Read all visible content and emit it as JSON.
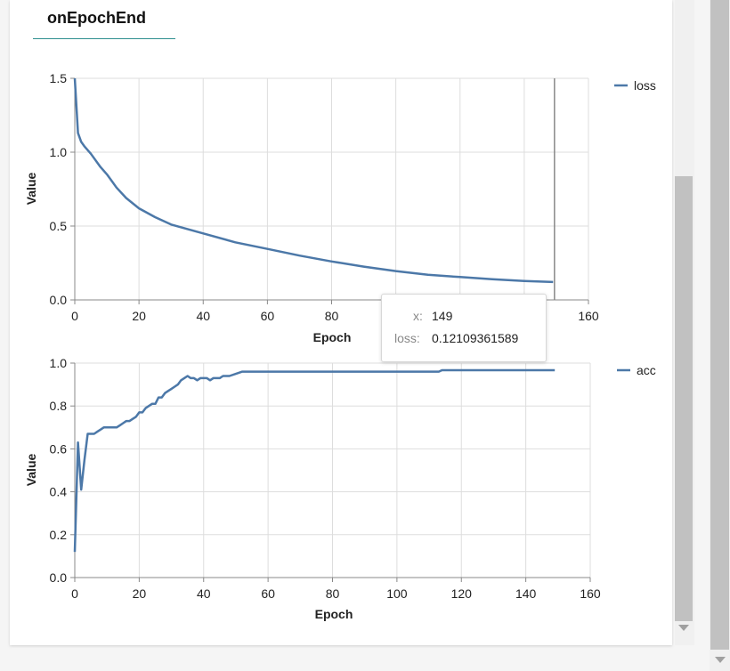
{
  "tab": {
    "label": "onEpochEnd"
  },
  "colors": {
    "series": "#4c78a8",
    "grid": "#dddddd",
    "axis": "#888888",
    "rule": "#888888"
  },
  "tooltip": {
    "x_key": "x:",
    "x_val": "149",
    "loss_key": "loss:",
    "loss_val": "0.12109361589"
  },
  "chart_data": [
    {
      "type": "line",
      "xlabel": "Epoch",
      "ylabel": "Value",
      "xlim": [
        0,
        160
      ],
      "ylim": [
        0,
        1.5
      ],
      "x_ticks": [
        0,
        20,
        40,
        60,
        80,
        100,
        120,
        140,
        160
      ],
      "y_ticks": [
        "0.0",
        "0.5",
        "1.0",
        "1.5"
      ],
      "legend": "top-right",
      "series": [
        {
          "name": "loss",
          "x": [
            0,
            1,
            2,
            3,
            5,
            8,
            10,
            13,
            16,
            20,
            25,
            30,
            35,
            40,
            50,
            60,
            70,
            80,
            90,
            100,
            110,
            120,
            130,
            140,
            149
          ],
          "y": [
            1.5,
            1.13,
            1.07,
            1.04,
            0.99,
            0.9,
            0.85,
            0.76,
            0.69,
            0.62,
            0.56,
            0.51,
            0.48,
            0.45,
            0.39,
            0.345,
            0.3,
            0.26,
            0.225,
            0.195,
            0.17,
            0.155,
            0.14,
            0.128,
            0.121
          ]
        }
      ],
      "hover_x": 149
    },
    {
      "type": "line",
      "xlabel": "Epoch",
      "ylabel": "Value",
      "xlim": [
        0,
        160
      ],
      "ylim": [
        0,
        1.0
      ],
      "x_ticks": [
        0,
        20,
        40,
        60,
        80,
        100,
        120,
        140,
        160
      ],
      "y_ticks": [
        "0.0",
        "0.2",
        "0.4",
        "0.6",
        "0.8",
        "1.0"
      ],
      "legend": "top-right",
      "series": [
        {
          "name": "acc",
          "x": [
            0,
            1,
            2,
            3,
            4,
            5,
            6,
            7,
            8,
            9,
            10,
            11,
            12,
            13,
            14,
            15,
            16,
            17,
            18,
            19,
            20,
            21,
            22,
            23,
            24,
            25,
            26,
            27,
            28,
            29,
            30,
            31,
            32,
            33,
            34,
            35,
            36,
            37,
            38,
            39,
            40,
            41,
            42,
            43,
            44,
            45,
            46,
            47,
            48,
            50,
            52,
            60,
            70,
            80,
            86,
            87,
            88,
            90,
            100,
            110,
            113,
            114,
            120,
            130,
            140,
            149
          ],
          "y": [
            0.12,
            0.63,
            0.41,
            0.55,
            0.67,
            0.67,
            0.67,
            0.68,
            0.69,
            0.7,
            0.7,
            0.7,
            0.7,
            0.7,
            0.71,
            0.72,
            0.73,
            0.73,
            0.74,
            0.75,
            0.77,
            0.77,
            0.79,
            0.8,
            0.81,
            0.81,
            0.84,
            0.84,
            0.86,
            0.87,
            0.88,
            0.89,
            0.9,
            0.92,
            0.93,
            0.94,
            0.93,
            0.93,
            0.92,
            0.93,
            0.93,
            0.93,
            0.92,
            0.93,
            0.93,
            0.93,
            0.94,
            0.94,
            0.94,
            0.95,
            0.96,
            0.96,
            0.96,
            0.96,
            0.96,
            0.96,
            0.96,
            0.96,
            0.96,
            0.96,
            0.96,
            0.967,
            0.967,
            0.967,
            0.967,
            0.967
          ]
        }
      ]
    }
  ]
}
